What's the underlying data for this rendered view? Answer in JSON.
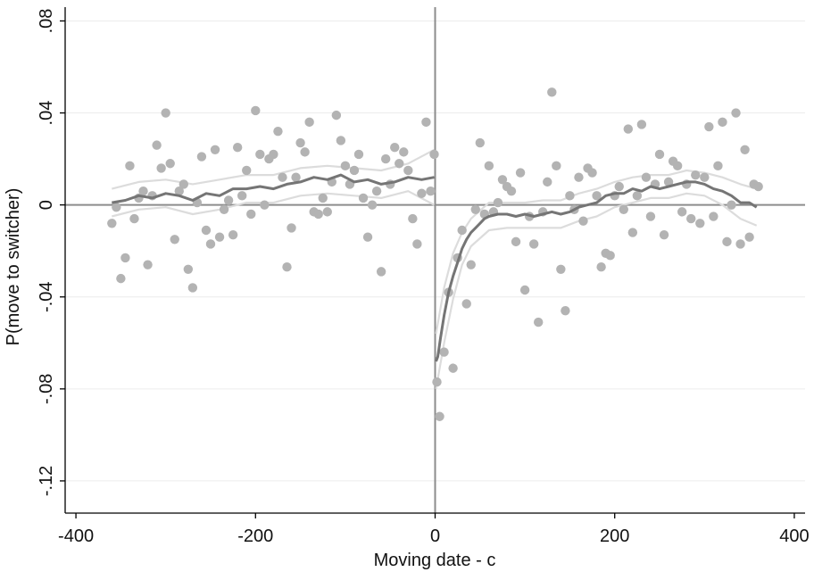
{
  "chart_data": {
    "type": "scatter",
    "title": "",
    "xlabel": "Moving date - c",
    "ylabel": "P(move to switcher)",
    "xlim": [
      -412,
      412
    ],
    "ylim": [
      -0.134,
      0.086
    ],
    "xticks": [
      -400,
      -200,
      0,
      200,
      400
    ],
    "xtick_labels": [
      "-400",
      "-200",
      "0",
      "200",
      "400"
    ],
    "yticks": [
      0.08,
      0.04,
      0,
      -0.04,
      -0.08,
      -0.12
    ],
    "ytick_labels": [
      ".08",
      ".04",
      "0",
      "-.04",
      "-.08",
      "-.12"
    ],
    "grid": "horizontal",
    "reference_lines": {
      "x": 0,
      "y": 0
    },
    "colors": {
      "points": "#b3b3b3",
      "fit": "#757575",
      "ci": "#dcdcdc",
      "axis": "#000000",
      "grid": "#ececec",
      "reference": "#8c8c8c"
    },
    "series": [
      {
        "kind": "scatter",
        "points": [
          [
            -360,
            -0.008
          ],
          [
            -355,
            -0.001
          ],
          [
            -350,
            -0.032
          ],
          [
            -345,
            -0.023
          ],
          [
            -340,
            0.017
          ],
          [
            -335,
            -0.006
          ],
          [
            -330,
            0.003
          ],
          [
            -325,
            0.006
          ],
          [
            -320,
            -0.026
          ],
          [
            -315,
            0.004
          ],
          [
            -310,
            0.026
          ],
          [
            -305,
            0.016
          ],
          [
            -300,
            0.04
          ],
          [
            -295,
            0.018
          ],
          [
            -290,
            -0.015
          ],
          [
            -285,
            0.006
          ],
          [
            -280,
            0.009
          ],
          [
            -275,
            -0.028
          ],
          [
            -270,
            -0.036
          ],
          [
            -265,
            0.001
          ],
          [
            -260,
            0.021
          ],
          [
            -255,
            -0.011
          ],
          [
            -250,
            -0.017
          ],
          [
            -245,
            0.024
          ],
          [
            -240,
            -0.014
          ],
          [
            -235,
            -0.002
          ],
          [
            -230,
            0.002
          ],
          [
            -225,
            -0.013
          ],
          [
            -220,
            0.025
          ],
          [
            -215,
            0.004
          ],
          [
            -210,
            0.015
          ],
          [
            -205,
            -0.004
          ],
          [
            -200,
            0.041
          ],
          [
            -195,
            0.022
          ],
          [
            -190,
            0.0
          ],
          [
            -185,
            0.02
          ],
          [
            -180,
            0.022
          ],
          [
            -175,
            0.032
          ],
          [
            -170,
            0.012
          ],
          [
            -165,
            -0.027
          ],
          [
            -160,
            -0.01
          ],
          [
            -155,
            0.012
          ],
          [
            -150,
            0.027
          ],
          [
            -145,
            0.023
          ],
          [
            -140,
            0.036
          ],
          [
            -135,
            -0.003
          ],
          [
            -130,
            -0.004
          ],
          [
            -125,
            0.003
          ],
          [
            -120,
            -0.003
          ],
          [
            -115,
            0.01
          ],
          [
            -110,
            0.039
          ],
          [
            -105,
            0.028
          ],
          [
            -100,
            0.017
          ],
          [
            -95,
            0.009
          ],
          [
            -90,
            0.015
          ],
          [
            -85,
            0.022
          ],
          [
            -80,
            0.003
          ],
          [
            -75,
            -0.014
          ],
          [
            -70,
            0.0
          ],
          [
            -65,
            0.006
          ],
          [
            -60,
            -0.029
          ],
          [
            -55,
            0.02
          ],
          [
            -50,
            0.009
          ],
          [
            -45,
            0.025
          ],
          [
            -40,
            0.018
          ],
          [
            -35,
            0.023
          ],
          [
            -30,
            0.015
          ],
          [
            -25,
            -0.006
          ],
          [
            -20,
            -0.017
          ],
          [
            -15,
            0.005
          ],
          [
            -10,
            0.036
          ],
          [
            -5,
            0.006
          ],
          [
            -1,
            0.022
          ],
          [
            2,
            -0.077
          ],
          [
            5,
            -0.092
          ],
          [
            10,
            -0.064
          ],
          [
            15,
            -0.038
          ],
          [
            20,
            -0.071
          ],
          [
            25,
            -0.023
          ],
          [
            30,
            -0.011
          ],
          [
            35,
            -0.043
          ],
          [
            40,
            -0.026
          ],
          [
            45,
            -0.002
          ],
          [
            50,
            0.027
          ],
          [
            55,
            -0.004
          ],
          [
            60,
            0.017
          ],
          [
            65,
            -0.003
          ],
          [
            70,
            0.001
          ],
          [
            75,
            0.011
          ],
          [
            80,
            0.008
          ],
          [
            85,
            0.006
          ],
          [
            90,
            -0.016
          ],
          [
            95,
            0.014
          ],
          [
            100,
            -0.037
          ],
          [
            105,
            -0.005
          ],
          [
            110,
            -0.017
          ],
          [
            115,
            -0.051
          ],
          [
            120,
            -0.003
          ],
          [
            125,
            0.01
          ],
          [
            130,
            0.049
          ],
          [
            135,
            0.017
          ],
          [
            140,
            -0.028
          ],
          [
            145,
            -0.046
          ],
          [
            150,
            0.004
          ],
          [
            155,
            -0.002
          ],
          [
            160,
            0.012
          ],
          [
            165,
            -0.007
          ],
          [
            170,
            0.016
          ],
          [
            175,
            0.014
          ],
          [
            180,
            0.004
          ],
          [
            185,
            -0.027
          ],
          [
            190,
            -0.021
          ],
          [
            195,
            -0.022
          ],
          [
            200,
            0.004
          ],
          [
            205,
            0.008
          ],
          [
            210,
            -0.002
          ],
          [
            215,
            0.033
          ],
          [
            220,
            -0.012
          ],
          [
            225,
            0.004
          ],
          [
            230,
            0.035
          ],
          [
            235,
            0.012
          ],
          [
            240,
            -0.005
          ],
          [
            245,
            0.009
          ],
          [
            250,
            0.022
          ],
          [
            255,
            -0.013
          ],
          [
            260,
            0.01
          ],
          [
            265,
            0.019
          ],
          [
            270,
            0.017
          ],
          [
            275,
            -0.003
          ],
          [
            280,
            0.009
          ],
          [
            285,
            -0.006
          ],
          [
            290,
            0.013
          ],
          [
            295,
            -0.008
          ],
          [
            300,
            0.012
          ],
          [
            305,
            0.034
          ],
          [
            310,
            -0.005
          ],
          [
            315,
            0.017
          ],
          [
            320,
            0.036
          ],
          [
            325,
            -0.016
          ],
          [
            330,
            0.0
          ],
          [
            335,
            0.04
          ],
          [
            340,
            -0.017
          ],
          [
            345,
            0.024
          ],
          [
            350,
            -0.014
          ],
          [
            355,
            0.009
          ],
          [
            360,
            0.008
          ]
        ]
      },
      {
        "kind": "line",
        "points": [
          [
            -360,
            0.001
          ],
          [
            -345,
            0.002
          ],
          [
            -330,
            0.004
          ],
          [
            -315,
            0.003
          ],
          [
            -300,
            0.005
          ],
          [
            -285,
            0.004
          ],
          [
            -270,
            0.002
          ],
          [
            -255,
            0.005
          ],
          [
            -240,
            0.004
          ],
          [
            -225,
            0.007
          ],
          [
            -210,
            0.007
          ],
          [
            -195,
            0.008
          ],
          [
            -180,
            0.007
          ],
          [
            -165,
            0.009
          ],
          [
            -150,
            0.01
          ],
          [
            -135,
            0.012
          ],
          [
            -120,
            0.011
          ],
          [
            -105,
            0.013
          ],
          [
            -90,
            0.01
          ],
          [
            -75,
            0.011
          ],
          [
            -60,
            0.009
          ],
          [
            -45,
            0.01
          ],
          [
            -30,
            0.012
          ],
          [
            -15,
            0.011
          ],
          [
            -1,
            0.012
          ],
          [
            1,
            -0.068
          ],
          [
            3,
            -0.066
          ],
          [
            6,
            -0.058
          ],
          [
            10,
            -0.048
          ],
          [
            15,
            -0.038
          ],
          [
            20,
            -0.031
          ],
          [
            25,
            -0.025
          ],
          [
            30,
            -0.019
          ],
          [
            35,
            -0.015
          ],
          [
            40,
            -0.012
          ],
          [
            45,
            -0.01
          ],
          [
            50,
            -0.008
          ],
          [
            55,
            -0.006
          ],
          [
            60,
            -0.005
          ],
          [
            70,
            -0.004
          ],
          [
            80,
            -0.004
          ],
          [
            90,
            -0.005
          ],
          [
            100,
            -0.004
          ],
          [
            110,
            -0.005
          ],
          [
            120,
            -0.004
          ],
          [
            130,
            -0.003
          ],
          [
            140,
            -0.004
          ],
          [
            150,
            -0.003
          ],
          [
            160,
            -0.001
          ],
          [
            170,
            0.0
          ],
          [
            180,
            0.001
          ],
          [
            190,
            0.004
          ],
          [
            200,
            0.005
          ],
          [
            210,
            0.005
          ],
          [
            220,
            0.007
          ],
          [
            230,
            0.006
          ],
          [
            240,
            0.008
          ],
          [
            250,
            0.007
          ],
          [
            260,
            0.008
          ],
          [
            270,
            0.009
          ],
          [
            280,
            0.01
          ],
          [
            290,
            0.01
          ],
          [
            300,
            0.009
          ],
          [
            310,
            0.007
          ],
          [
            320,
            0.006
          ],
          [
            330,
            0.004
          ],
          [
            340,
            0.001
          ],
          [
            350,
            0.001
          ],
          [
            358,
            -0.001
          ]
        ]
      },
      {
        "kind": "line",
        "points": [
          [
            -360,
            0.007
          ],
          [
            -330,
            0.01
          ],
          [
            -300,
            0.011
          ],
          [
            -270,
            0.009
          ],
          [
            -240,
            0.011
          ],
          [
            -210,
            0.013
          ],
          [
            -180,
            0.013
          ],
          [
            -150,
            0.016
          ],
          [
            -120,
            0.017
          ],
          [
            -90,
            0.016
          ],
          [
            -60,
            0.015
          ],
          [
            -30,
            0.018
          ],
          [
            -1,
            0.024
          ],
          [
            1,
            -0.056
          ],
          [
            10,
            -0.036
          ],
          [
            20,
            -0.021
          ],
          [
            30,
            -0.012
          ],
          [
            40,
            -0.006
          ],
          [
            60,
            0.001
          ],
          [
            80,
            0.001
          ],
          [
            100,
            0.001
          ],
          [
            120,
            0.002
          ],
          [
            140,
            0.002
          ],
          [
            160,
            0.005
          ],
          [
            180,
            0.007
          ],
          [
            200,
            0.01
          ],
          [
            220,
            0.012
          ],
          [
            240,
            0.013
          ],
          [
            260,
            0.013
          ],
          [
            280,
            0.015
          ],
          [
            300,
            0.014
          ],
          [
            320,
            0.012
          ],
          [
            340,
            0.009
          ],
          [
            358,
            0.007
          ]
        ]
      },
      {
        "kind": "line",
        "points": [
          [
            -360,
            -0.005
          ],
          [
            -330,
            -0.002
          ],
          [
            -300,
            -0.001
          ],
          [
            -270,
            -0.004
          ],
          [
            -240,
            -0.002
          ],
          [
            -210,
            0.001
          ],
          [
            -180,
            0.001
          ],
          [
            -150,
            0.004
          ],
          [
            -120,
            0.005
          ],
          [
            -90,
            0.004
          ],
          [
            -60,
            0.003
          ],
          [
            -30,
            0.006
          ],
          [
            -1,
            0.0
          ],
          [
            1,
            -0.08
          ],
          [
            10,
            -0.06
          ],
          [
            20,
            -0.041
          ],
          [
            30,
            -0.026
          ],
          [
            40,
            -0.018
          ],
          [
            60,
            -0.011
          ],
          [
            80,
            -0.01
          ],
          [
            100,
            -0.01
          ],
          [
            120,
            -0.01
          ],
          [
            140,
            -0.01
          ],
          [
            160,
            -0.007
          ],
          [
            180,
            -0.005
          ],
          [
            200,
            -0.001
          ],
          [
            220,
            0.001
          ],
          [
            240,
            0.003
          ],
          [
            260,
            0.003
          ],
          [
            280,
            0.005
          ],
          [
            300,
            0.004
          ],
          [
            320,
            0.0
          ],
          [
            340,
            -0.006
          ],
          [
            358,
            -0.009
          ]
        ]
      }
    ]
  }
}
